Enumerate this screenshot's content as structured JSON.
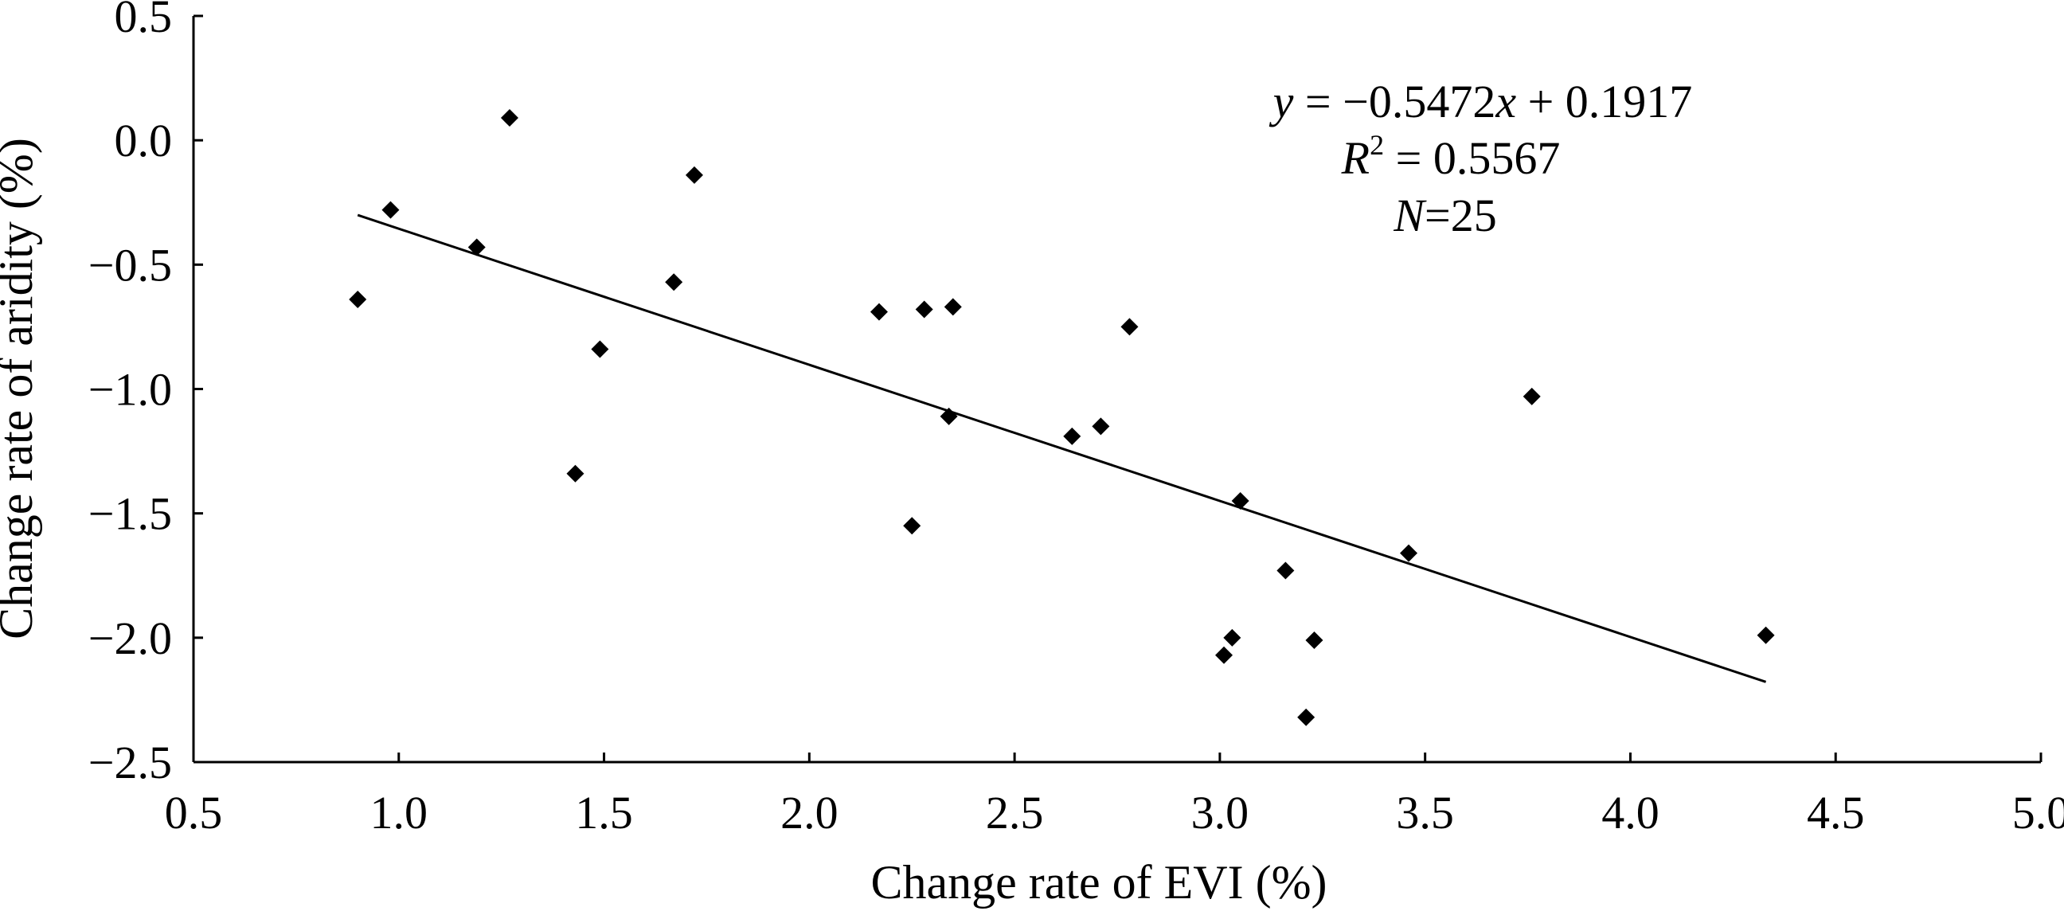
{
  "chart_data": {
    "type": "scatter",
    "title": "",
    "xlabel": "Change rate of EVI (%)",
    "ylabel": "Change rate of aridity (%)",
    "xlim": [
      0.5,
      5.0
    ],
    "ylim": [
      -2.5,
      0.5
    ],
    "grid": false,
    "legend": "none",
    "xticks": [
      "0.5",
      "1.0",
      "1.5",
      "2.0",
      "2.5",
      "3.0",
      "3.5",
      "4.0",
      "4.5",
      "5.0"
    ],
    "yticks": [
      "0.5",
      "0.0",
      "−0.5",
      "−1.0",
      "−1.5",
      "−2.0",
      "−2.5"
    ],
    "points": [
      {
        "x": 0.9,
        "y": -0.64
      },
      {
        "x": 0.98,
        "y": -0.28
      },
      {
        "x": 1.19,
        "y": -0.43
      },
      {
        "x": 1.27,
        "y": 0.09
      },
      {
        "x": 1.43,
        "y": -1.34
      },
      {
        "x": 1.49,
        "y": -0.84
      },
      {
        "x": 1.67,
        "y": -0.57
      },
      {
        "x": 1.72,
        "y": -0.14
      },
      {
        "x": 2.17,
        "y": -0.69
      },
      {
        "x": 2.25,
        "y": -1.55
      },
      {
        "x": 2.28,
        "y": -0.68
      },
      {
        "x": 2.34,
        "y": -1.11
      },
      {
        "x": 2.35,
        "y": -0.67
      },
      {
        "x": 2.64,
        "y": -1.19
      },
      {
        "x": 2.71,
        "y": -1.15
      },
      {
        "x": 2.78,
        "y": -0.75
      },
      {
        "x": 3.01,
        "y": -2.07
      },
      {
        "x": 3.03,
        "y": -2.0
      },
      {
        "x": 3.05,
        "y": -1.45
      },
      {
        "x": 3.16,
        "y": -1.73
      },
      {
        "x": 3.21,
        "y": -2.32
      },
      {
        "x": 3.23,
        "y": -2.01
      },
      {
        "x": 3.46,
        "y": -1.66
      },
      {
        "x": 3.76,
        "y": -1.03
      },
      {
        "x": 4.33,
        "y": -1.99
      }
    ],
    "trendline": {
      "slope": -0.5472,
      "intercept": 0.1917,
      "x_range": [
        0.9,
        4.33
      ]
    },
    "annotation": {
      "equation": {
        "y": "y",
        "eq": " = −0.5472",
        "x": "x",
        "rest": " + 0.1917"
      },
      "r2": {
        "r": "R",
        "sup": "2",
        "rest": " = 0.5567"
      },
      "n": {
        "n": "N",
        "rest": "=25"
      }
    }
  }
}
